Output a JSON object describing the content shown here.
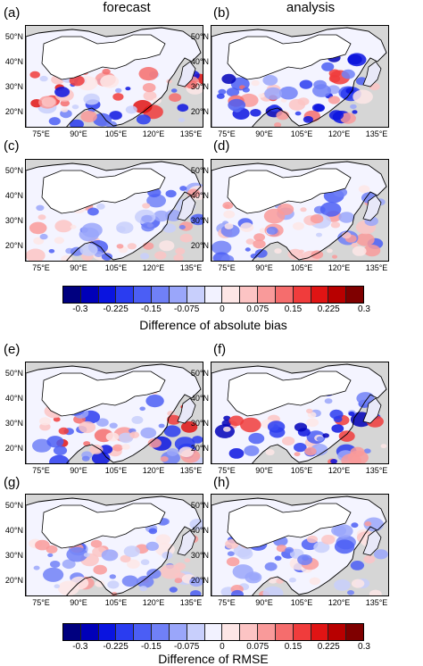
{
  "column_titles": [
    "forecast",
    "analysis"
  ],
  "panels": [
    "(a)",
    "(b)",
    "(c)",
    "(d)",
    "(e)",
    "(f)",
    "(g)",
    "(h)"
  ],
  "lat_ticks": [
    "50°N",
    "40°N",
    "30°N",
    "20°N"
  ],
  "lon_ticks": [
    "75°E",
    "90°E",
    "105°E",
    "120°E",
    "135°E"
  ],
  "colorbar_ticks": [
    "-0.3",
    "-0.225",
    "-0.15",
    "-0.075",
    "0",
    "0.075",
    "0.15",
    "0.225",
    "0.3"
  ],
  "colorbar1_title": "Difference of absolute bias",
  "colorbar2_title": "Difference of RMSE",
  "colors": [
    "#00007f",
    "#0000b8",
    "#0a14e0",
    "#2a3cf0",
    "#4b5ef5",
    "#7080f7",
    "#9aa6fa",
    "#c8cffc",
    "#f2f2ff",
    "#fde6e6",
    "#fcc4c4",
    "#f99a9a",
    "#f56d6d",
    "#f03c3c",
    "#e01414",
    "#b80000",
    "#7f0000"
  ]
}
